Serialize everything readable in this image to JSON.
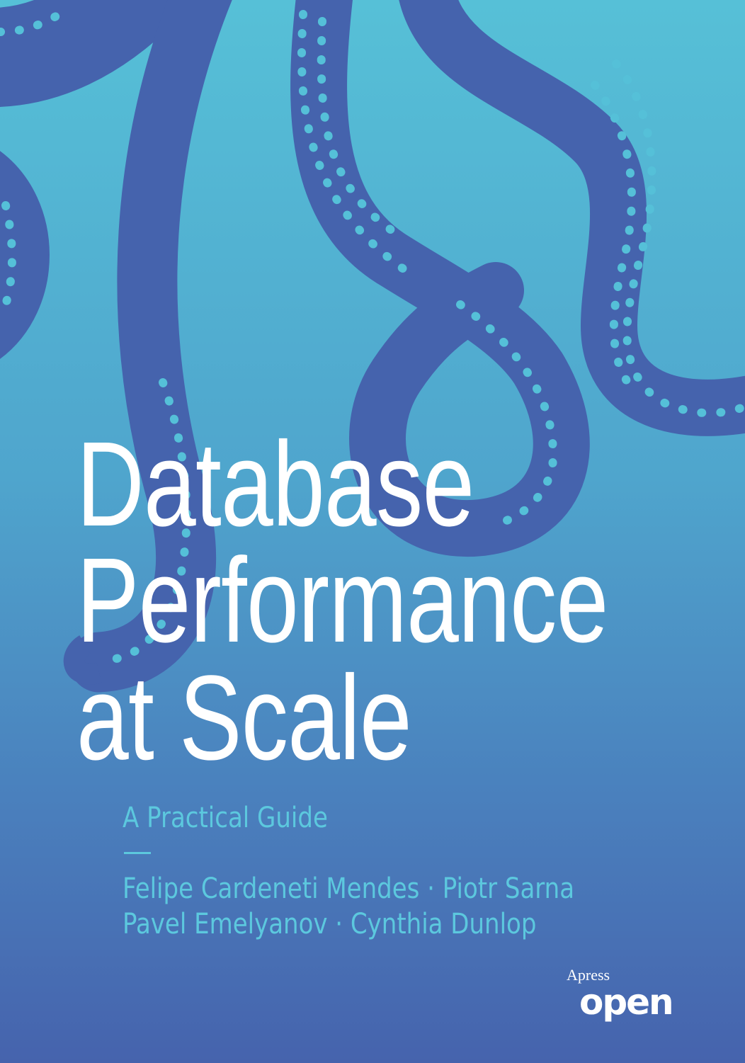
{
  "cover": {
    "title_lines": [
      "Database",
      "Performance",
      "at Scale"
    ],
    "subtitle": "A Practical Guide",
    "authors_lines": [
      "Felipe Cardeneti Mendes · Piotr Sarna",
      "Pavel Emelyanov · Cynthia Dunlop"
    ],
    "publisher_logo": {
      "top": "Apress",
      "bottom": "open"
    }
  },
  "colors": {
    "background_top": "#56c0d7",
    "background_bottom": "#4663ad",
    "tentacle": "#4563ad",
    "suckers": "#55c0d8",
    "title": "#ffffff",
    "subtitle": "#5cc8de"
  }
}
